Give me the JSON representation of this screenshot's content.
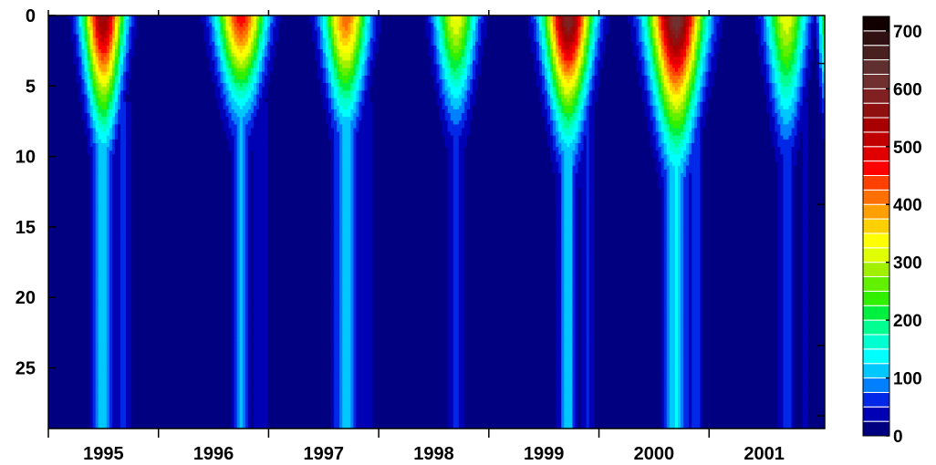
{
  "chart_data": {
    "type": "heatmap",
    "title": "",
    "xlabel": "",
    "ylabel": "",
    "x_tick_labels": [
      "1995",
      "1996",
      "1997",
      "1998",
      "1999",
      "2000",
      "2001"
    ],
    "y_tick_labels": [
      "0",
      "5",
      "10",
      "15",
      "20",
      "25"
    ],
    "y_ticks": [
      0,
      5,
      10,
      15,
      20,
      25
    ],
    "y_range": [
      0,
      29.3
    ],
    "y_inverted": true,
    "x_range": [
      1994.5,
      2001.55
    ],
    "colorbar": {
      "range": [
        0,
        725
      ],
      "tick_values": [
        0,
        100,
        200,
        300,
        400,
        500,
        600,
        700
      ],
      "tick_labels": [
        "0",
        "100",
        "200",
        "300",
        "400",
        "500",
        "600",
        "700"
      ],
      "levels": [
        0,
        25,
        50,
        75,
        100,
        125,
        150,
        175,
        200,
        225,
        250,
        275,
        300,
        325,
        350,
        375,
        400,
        425,
        450,
        475,
        500,
        525,
        550,
        575,
        600,
        625,
        650,
        675,
        700,
        725
      ],
      "colors": [
        "#000080",
        "#0000b4",
        "#0028e6",
        "#0080ff",
        "#00c8ff",
        "#00ffff",
        "#00ffd0",
        "#00ff90",
        "#00f040",
        "#30f000",
        "#60f000",
        "#a0f000",
        "#e0ff00",
        "#ffff00",
        "#ffd000",
        "#ffa000",
        "#ff7000",
        "#ff4000",
        "#ff0000",
        "#e00000",
        "#c00000",
        "#a80000",
        "#901010",
        "#802020",
        "#703030",
        "#603030",
        "#482020",
        "#301010",
        "#100000"
      ]
    },
    "blooms": [
      {
        "time": 1995.0,
        "width": 0.11,
        "peak": 560,
        "depth": 7.0,
        "core_level": 110,
        "core_width": 0.06
      },
      {
        "time": 1996.25,
        "width": 0.13,
        "peak": 470,
        "depth": 5.5,
        "core_level": 95,
        "core_width": 0.05
      },
      {
        "time": 1997.2,
        "width": 0.12,
        "peak": 420,
        "depth": 6.5,
        "core_level": 100,
        "core_width": 0.07
      },
      {
        "time": 1998.2,
        "width": 0.11,
        "peak": 330,
        "depth": 6.0,
        "core_level": 45,
        "core_width": 0.05
      },
      {
        "time": 1999.22,
        "width": 0.13,
        "peak": 600,
        "depth": 7.0,
        "core_level": 110,
        "core_width": 0.05
      },
      {
        "time": 2000.2,
        "width": 0.15,
        "peak": 620,
        "depth": 8.0,
        "core_level": 120,
        "core_width": 0.07
      },
      {
        "time": 2001.2,
        "width": 0.11,
        "peak": 320,
        "depth": 7.0,
        "core_level": 60,
        "core_width": 0.04
      },
      {
        "time": 2001.58,
        "width": 0.05,
        "peak": 300,
        "depth": 6.0,
        "core_level": 30,
        "core_width": 0.03
      }
    ]
  }
}
